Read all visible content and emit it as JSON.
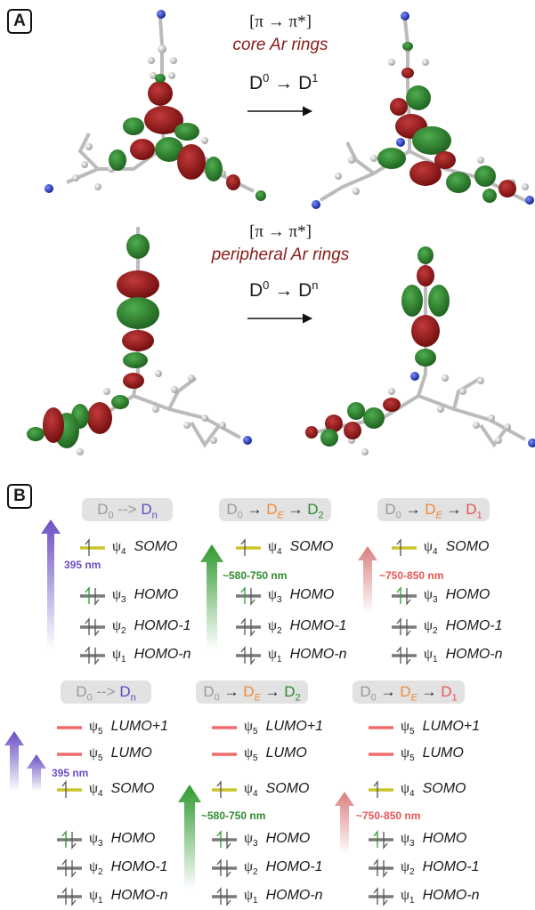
{
  "panelA": {
    "label": "A",
    "transition1": {
      "type": "[π → π*]",
      "desc": "core Ar rings",
      "from": "D",
      "from_sup": "0",
      "to": "D",
      "to_sup": "1"
    },
    "transition2": {
      "type": "[π → π*]",
      "desc": "peripheral Ar rings",
      "from": "D",
      "from_sup": "0",
      "to": "D",
      "to_sup": "n"
    }
  },
  "panelB": {
    "label": "B",
    "psi": "ψ",
    "top_tags": [
      {
        "a": "D",
        "a_sub": "0",
        "arrow": " --> ",
        "b": "D",
        "b_sub": "n"
      },
      {
        "a": "D",
        "a_sub": "0",
        "arrow": " → ",
        "b": "D",
        "b_sub": "E",
        "arrow2": " → ",
        "c": "D",
        "c_sub": "2"
      },
      {
        "a": "D",
        "a_sub": "0",
        "arrow": " → ",
        "b": "D",
        "b_sub": "E",
        "arrow2": " → ",
        "c": "D",
        "c_sub": "1"
      }
    ],
    "bottom_tags": [
      {
        "a": "D",
        "a_sub": "0",
        "arrow": " --> ",
        "b": "D",
        "b_sub": "n"
      },
      {
        "a": "D",
        "a_sub": "0",
        "arrow": " → ",
        "b": "D",
        "b_sub": "E",
        "arrow2": " → ",
        "c": "D",
        "c_sub": "2"
      },
      {
        "a": "D",
        "a_sub": "0",
        "arrow": " → ",
        "b": "D",
        "b_sub": "E",
        "arrow2": " → ",
        "c": "D",
        "c_sub": "1"
      }
    ],
    "top_levels": [
      {
        "sub": "4",
        "name": "SOMO"
      },
      {
        "sub": "3",
        "name": "HOMO"
      },
      {
        "sub": "2",
        "name": "HOMO-1"
      },
      {
        "sub": "1",
        "name": "HOMO-n"
      }
    ],
    "bottom_levels": [
      {
        "sub": "5",
        "name": "LUMO+1"
      },
      {
        "sub": "5",
        "name": "LUMO"
      },
      {
        "sub": "4",
        "name": "SOMO"
      },
      {
        "sub": "3",
        "name": "HOMO"
      },
      {
        "sub": "2",
        "name": "HOMO-1"
      },
      {
        "sub": "1",
        "name": "HOMO-n"
      }
    ],
    "wavelengths": [
      "395 nm",
      "~580-750 nm",
      "~750-850 nm"
    ],
    "colors": {
      "violet": "#6a4fc4",
      "green": "#2e9a2e",
      "pink": "#e07a7a",
      "level_gray": "#7a7a7a",
      "level_yellow": "#c9c52a",
      "level_red": "#f06a6a",
      "mo_red": "#8b1010",
      "mo_green": "#2a7a2a"
    }
  }
}
